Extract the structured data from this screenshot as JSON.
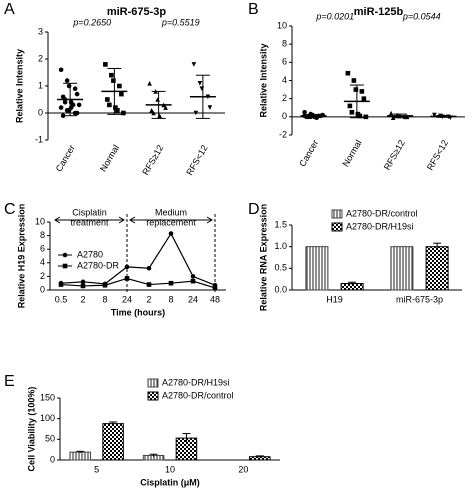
{
  "chart_data": [
    {
      "type": "dotplot",
      "label": "A",
      "title": "miR-675-3p",
      "ylabel": "Relative Intensity",
      "ylim": [
        -1,
        3
      ],
      "yticks": [
        -1,
        0,
        1,
        2,
        3
      ],
      "annotations": [
        "p=0.2650",
        "p=0.5519"
      ],
      "groups": [
        {
          "name": "Cancer",
          "marker": "circle",
          "points": [
            1.6,
            1.2,
            1.0,
            0.9,
            0.7,
            0.6,
            0.5,
            0.4,
            0.3,
            0.3,
            0.2,
            0.1,
            0.1,
            0.0,
            0.0,
            -0.1,
            0.4,
            0.2
          ],
          "mean": 0.5,
          "sd": 0.6
        },
        {
          "name": "Normal",
          "marker": "square",
          "points": [
            1.8,
            1.4,
            1.2,
            1.0,
            0.7,
            0.5,
            0.3,
            0.2,
            0.1,
            0.0
          ],
          "mean": 0.8,
          "sd": 0.85
        },
        {
          "name": "RFS≥12",
          "marker": "triangle-up",
          "points": [
            1.1,
            0.8,
            0.5,
            0.3,
            0.2,
            0.1,
            0.0,
            -0.1
          ],
          "mean": 0.3,
          "sd": 0.5
        },
        {
          "name": "RFS<12",
          "marker": "triangle-down",
          "points": [
            1.8,
            1.1,
            0.9,
            0.6,
            0.2,
            0.0
          ],
          "mean": 0.6,
          "sd": 0.8
        }
      ]
    },
    {
      "type": "dotplot",
      "label": "B",
      "title": "miR-125b",
      "ylabel": "Relative Intensity",
      "ylim": [
        -2,
        10
      ],
      "yticks": [
        -2,
        0,
        2,
        4,
        6,
        8,
        10
      ],
      "annotations": [
        "p=0.0201",
        "p=0.0544"
      ],
      "groups": [
        {
          "name": "Cancer",
          "marker": "circle",
          "points": [
            0.5,
            0.3,
            0.2,
            0.1,
            0.1,
            0.0,
            0.0,
            0.0,
            -0.1,
            0.2,
            0.1,
            0.0
          ],
          "mean": 0.1,
          "sd": 0.15
        },
        {
          "name": "Normal",
          "marker": "square",
          "points": [
            4.8,
            4.0,
            3.0,
            2.8,
            2.0,
            1.2,
            0.5,
            0.3,
            0.1,
            0.0
          ],
          "mean": 1.7,
          "sd": 1.8
        },
        {
          "name": "RFS≥12",
          "marker": "triangle-up",
          "points": [
            0.4,
            0.2,
            0.1,
            0.0,
            0.0,
            -0.1
          ],
          "mean": 0.1,
          "sd": 0.2
        },
        {
          "name": "RFS<12",
          "marker": "triangle-down",
          "points": [
            0.2,
            0.1,
            0.0,
            0.0,
            -0.1
          ],
          "mean": 0.05,
          "sd": 0.1
        }
      ]
    },
    {
      "type": "line",
      "label": "C",
      "ylabel": "Relative H19 Expression",
      "xlabel": "Time  (hours)",
      "categories": [
        "0.5",
        "2",
        "8",
        "24",
        "2",
        "8",
        "24",
        "48"
      ],
      "ylim": [
        0,
        10
      ],
      "yticks": [
        0,
        2,
        4,
        6,
        8,
        10
      ],
      "annotations": [
        [
          "Cisplatin",
          "treatment"
        ],
        [
          "Medium",
          "replacement"
        ]
      ],
      "series": [
        {
          "name": "A2780",
          "marker": "circle",
          "color": "#000000",
          "values": [
            1.0,
            1.2,
            0.9,
            3.4,
            3.2,
            8.3,
            2.0,
            0.7
          ]
        },
        {
          "name": "A2780-DR",
          "marker": "square",
          "color": "#000000",
          "values": [
            0.8,
            0.6,
            0.7,
            1.7,
            0.8,
            1.0,
            1.3,
            0.3
          ]
        }
      ]
    },
    {
      "type": "bar",
      "label": "D",
      "ylabel": "Relative RNA Expression",
      "categories": [
        "H19",
        "miR-675-3p"
      ],
      "ylim": [
        0,
        1.5
      ],
      "yticks": [
        {
          "value": 0,
          "label": "0.0"
        },
        {
          "value": 0.5,
          "label": "0.5"
        },
        {
          "value": 1,
          "label": "1.0"
        },
        {
          "value": 1.5,
          "label": "1.5"
        }
      ],
      "series": [
        {
          "name": "A2780-DR/control",
          "pattern": "stripes",
          "color": "#444444",
          "values": [
            1.0,
            1.0
          ],
          "errors": [
            0,
            0
          ]
        },
        {
          "name": "A2780-DR/H19si",
          "pattern": "checker",
          "color": "#000000",
          "values": [
            0.15,
            1.0
          ],
          "errors": [
            0.03,
            0.08
          ]
        }
      ]
    },
    {
      "type": "bar",
      "label": "E",
      "ylabel": "Cell Viability (100%)",
      "xlabel": "Cisplatin (μM)",
      "categories": [
        "5",
        "10",
        "20"
      ],
      "ylim": [
        0,
        150
      ],
      "yticks": [
        0,
        50,
        100,
        150
      ],
      "series": [
        {
          "name": "A2780-DR/H19si",
          "pattern": "stripes",
          "color": "#444444",
          "values": [
            19,
            11,
            null
          ],
          "errors": [
            2,
            3,
            null
          ]
        },
        {
          "name": "A2780-DR/control",
          "pattern": "checker",
          "color": "#000000",
          "values": [
            88,
            53,
            8
          ],
          "errors": [
            4,
            11,
            2
          ]
        }
      ]
    }
  ]
}
